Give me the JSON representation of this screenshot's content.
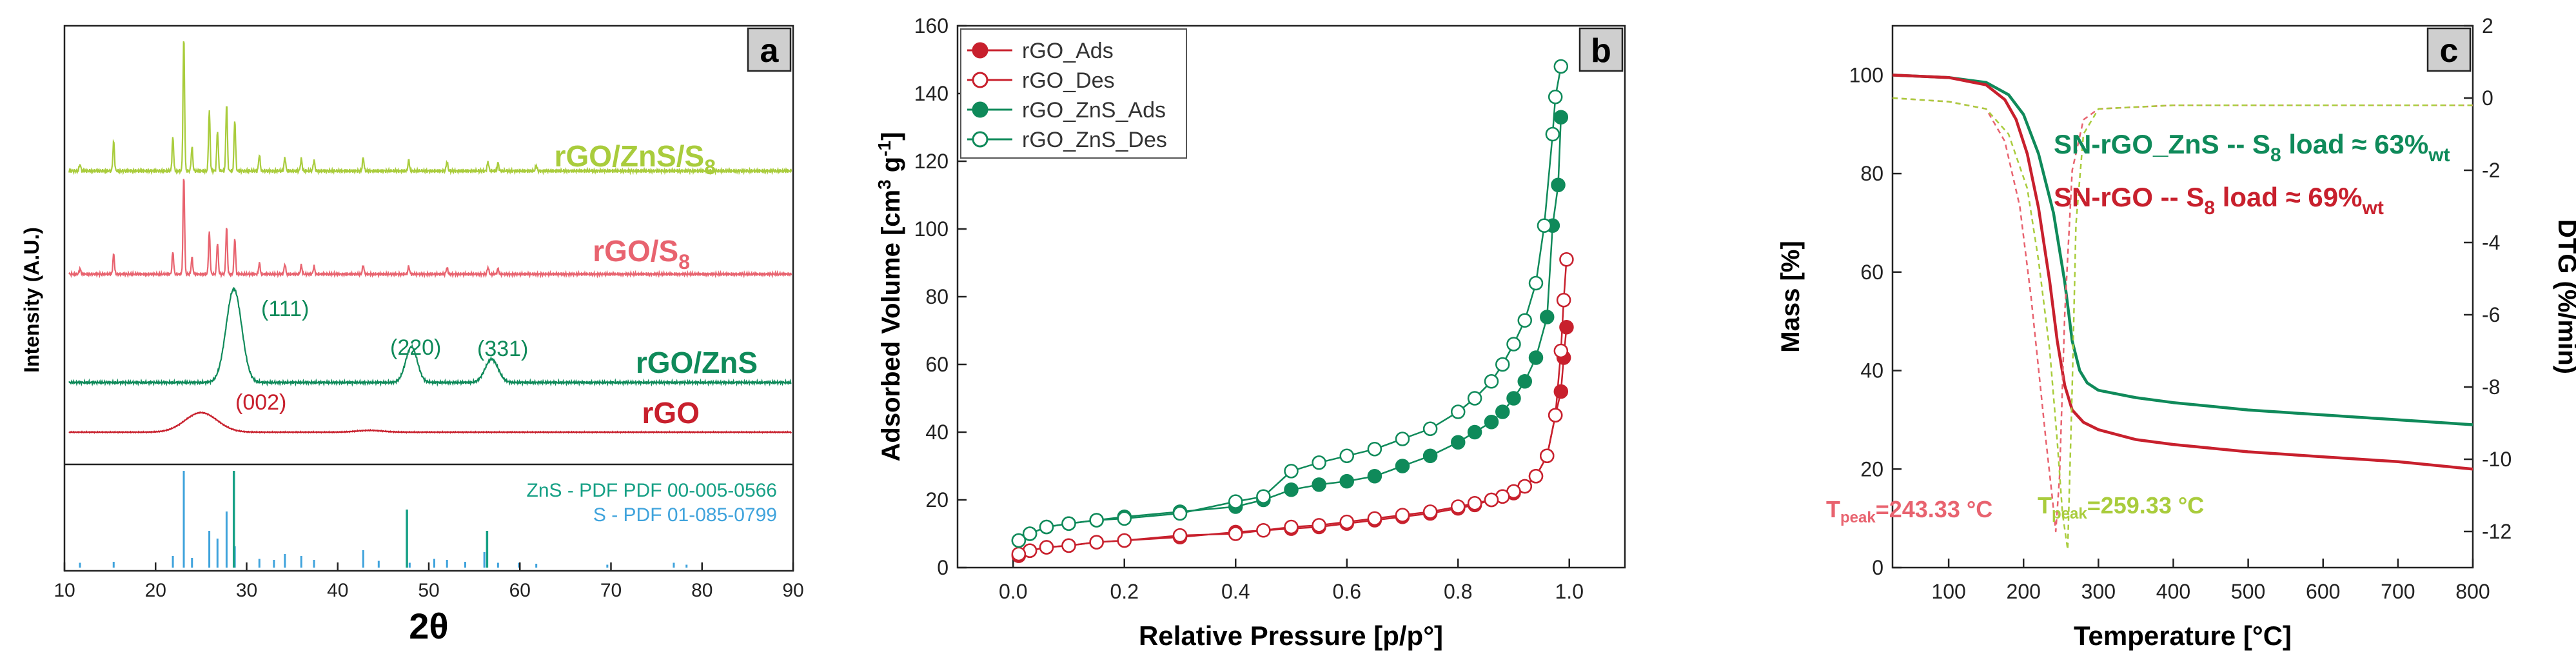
{
  "colors": {
    "rgo": "#c8202d",
    "rgo_s8": "#e8636f",
    "rgo_zns": "#0f8a5a",
    "rgo_zns_s8": "#a9cc3c",
    "ref_zns": "#16a085",
    "ref_s": "#3fa3dc",
    "panel_label_bg": "#cfcfcf"
  },
  "chart_data": [
    {
      "panel": "a",
      "type": "line",
      "title": "",
      "xlabel": "2θ",
      "ylabel": "Intensity (A.U.)",
      "xlim": [
        10,
        90
      ],
      "xticks": [
        "10",
        "20",
        "30",
        "40",
        "50",
        "60",
        "70",
        "80",
        "90"
      ],
      "series": [
        {
          "name": "rGO/ZnS/S8",
          "label_main": "rGO/ZnS/S",
          "label_sub": "8",
          "color_key": "rgo_zns_s8",
          "peaks": [
            [
              11.7,
              0.05
            ],
            [
              15.4,
              0.22
            ],
            [
              21.9,
              0.25
            ],
            [
              23.1,
              1.0
            ],
            [
              24.0,
              0.18
            ],
            [
              25.9,
              0.45
            ],
            [
              26.8,
              0.3
            ],
            [
              27.8,
              0.5
            ],
            [
              28.7,
              0.38
            ],
            [
              31.4,
              0.12
            ],
            [
              34.2,
              0.1
            ],
            [
              36.0,
              0.09
            ],
            [
              37.4,
              0.08
            ],
            [
              42.8,
              0.1
            ],
            [
              47.8,
              0.08
            ],
            [
              52.0,
              0.07
            ],
            [
              56.5,
              0.07
            ],
            [
              57.6,
              0.06
            ],
            [
              61.8,
              0.04
            ]
          ],
          "broad": []
        },
        {
          "name": "rGO/S8",
          "label_main": "rGO/S",
          "label_sub": "8",
          "color_key": "rgo_s8",
          "peaks": [
            [
              11.7,
              0.05
            ],
            [
              15.4,
              0.18
            ],
            [
              21.9,
              0.2
            ],
            [
              23.1,
              0.88
            ],
            [
              24.0,
              0.15
            ],
            [
              25.9,
              0.38
            ],
            [
              26.8,
              0.28
            ],
            [
              27.8,
              0.42
            ],
            [
              28.7,
              0.32
            ],
            [
              31.4,
              0.1
            ],
            [
              34.2,
              0.09
            ],
            [
              36.0,
              0.08
            ],
            [
              37.4,
              0.07
            ],
            [
              42.8,
              0.08
            ],
            [
              47.8,
              0.07
            ],
            [
              52.0,
              0.06
            ],
            [
              56.5,
              0.06
            ],
            [
              57.6,
              0.05
            ]
          ],
          "broad": []
        },
        {
          "name": "rGO/ZnS",
          "label_main": "rGO/ZnS",
          "label_sub": "",
          "color_key": "rgo_zns",
          "peaks": [],
          "broad": [
            [
              28.6,
              1.0,
              1.2
            ],
            [
              48.1,
              0.38,
              0.9
            ],
            [
              56.9,
              0.25,
              1.0
            ]
          ],
          "annotations": [
            {
              "x": 32.5,
              "text": "(111)"
            },
            {
              "x": 47.8,
              "text": "(220)"
            },
            {
              "x": 56.5,
              "text": "(331)"
            }
          ]
        },
        {
          "name": "rGO",
          "label_main": "rGO",
          "label_sub": "",
          "color_key": "rgo",
          "peaks": [],
          "broad": [
            [
              25.0,
              0.55,
              2.5
            ],
            [
              43.5,
              0.05,
              2.0
            ]
          ],
          "annotations": [
            {
              "x": 31.5,
              "text": "(002)"
            }
          ]
        }
      ],
      "reference": {
        "legend": [
          "ZnS - PDF PDF 00-005-0566",
          "S - PDF 01-085-0799"
        ],
        "zns": [
          [
            28.6,
            1.0
          ],
          [
            47.6,
            0.6
          ],
          [
            56.4,
            0.38
          ]
        ],
        "s": [
          [
            11.7,
            0.05
          ],
          [
            15.4,
            0.06
          ],
          [
            21.9,
            0.12
          ],
          [
            23.1,
            1.0
          ],
          [
            24.0,
            0.1
          ],
          [
            25.9,
            0.38
          ],
          [
            26.8,
            0.3
          ],
          [
            27.8,
            0.58
          ],
          [
            28.7,
            0.22
          ],
          [
            31.4,
            0.09
          ],
          [
            33.0,
            0.08
          ],
          [
            34.2,
            0.14
          ],
          [
            36.0,
            0.12
          ],
          [
            37.4,
            0.08
          ],
          [
            42.8,
            0.18
          ],
          [
            44.5,
            0.07
          ],
          [
            47.9,
            0.05
          ],
          [
            50.6,
            0.09
          ],
          [
            52.0,
            0.08
          ],
          [
            54.0,
            0.06
          ],
          [
            56.1,
            0.16
          ],
          [
            57.6,
            0.05
          ],
          [
            59.9,
            0.05
          ],
          [
            61.8,
            0.04
          ],
          [
            69.6,
            0.03
          ],
          [
            76.9,
            0.05
          ],
          [
            78.3,
            0.03
          ]
        ]
      }
    },
    {
      "panel": "b",
      "type": "line",
      "title": "",
      "xlabel": "Relative Pressure [p/p°]",
      "ylabel_main": "Adsorbed Volume [cm",
      "ylabel_sup1": "3",
      "ylabel_mid": " g",
      "ylabel_sup2": "-1",
      "ylabel_end": "]",
      "xlim": [
        -0.1,
        1.1
      ],
      "ylim": [
        0,
        160
      ],
      "xticks": [
        "0.0",
        "0.2",
        "0.4",
        "0.6",
        "0.8",
        "1.0"
      ],
      "yticks": [
        "0",
        "20",
        "40",
        "60",
        "80",
        "100",
        "120",
        "140",
        "160"
      ],
      "legend": [
        "rGO_Ads",
        "rGO_Des",
        "rGO_ZnS_Ads",
        "rGO_ZnS_Des"
      ],
      "series": [
        {
          "name": "rGO_Ads",
          "color_key": "rgo",
          "filled": true,
          "x": [
            0.01,
            0.03,
            0.06,
            0.1,
            0.15,
            0.2,
            0.3,
            0.4,
            0.5,
            0.55,
            0.6,
            0.65,
            0.7,
            0.75,
            0.8,
            0.83,
            0.86,
            0.88,
            0.9,
            0.92,
            0.94,
            0.96,
            0.975,
            0.985,
            0.99,
            0.995
          ],
          "y": [
            3.5,
            5,
            6,
            6.5,
            7.5,
            8,
            9,
            10.5,
            11.5,
            12,
            13,
            14,
            15,
            16,
            17.5,
            18.5,
            20,
            21,
            22,
            24,
            27,
            33,
            45,
            52,
            62,
            71
          ]
        },
        {
          "name": "rGO_Des",
          "color_key": "rgo",
          "filled": false,
          "x": [
            0.995,
            0.99,
            0.985,
            0.975,
            0.96,
            0.94,
            0.92,
            0.9,
            0.88,
            0.86,
            0.83,
            0.8,
            0.75,
            0.7,
            0.65,
            0.6,
            0.55,
            0.5,
            0.45,
            0.4,
            0.3,
            0.2,
            0.15,
            0.1,
            0.06,
            0.03,
            0.01
          ],
          "y": [
            91,
            79,
            64,
            45,
            33,
            27,
            24,
            22.5,
            21,
            20,
            19,
            18,
            16.5,
            15.5,
            14.5,
            13.5,
            12.5,
            12,
            11,
            10,
            9.5,
            8,
            7.5,
            6.5,
            6,
            5,
            4
          ]
        },
        {
          "name": "rGO_ZnS_Ads",
          "color_key": "rgo_zns",
          "filled": true,
          "x": [
            0.01,
            0.03,
            0.06,
            0.1,
            0.15,
            0.2,
            0.3,
            0.4,
            0.45,
            0.5,
            0.55,
            0.6,
            0.65,
            0.7,
            0.75,
            0.8,
            0.83,
            0.86,
            0.88,
            0.9,
            0.92,
            0.94,
            0.96,
            0.97,
            0.98,
            0.985
          ],
          "y": [
            8,
            10,
            12,
            13,
            14,
            15,
            16.5,
            18,
            20,
            23,
            24.5,
            25.5,
            27,
            30,
            33,
            37,
            40,
            43,
            46,
            50,
            55,
            62,
            74,
            101,
            113,
            133
          ]
        },
        {
          "name": "rGO_ZnS_Des",
          "color_key": "rgo_zns",
          "filled": false,
          "x": [
            0.985,
            0.975,
            0.97,
            0.955,
            0.94,
            0.92,
            0.9,
            0.88,
            0.86,
            0.83,
            0.8,
            0.75,
            0.7,
            0.65,
            0.6,
            0.55,
            0.5,
            0.45,
            0.4,
            0.3,
            0.2,
            0.15,
            0.1,
            0.06,
            0.03,
            0.01
          ],
          "y": [
            148,
            139,
            128,
            101,
            84,
            73,
            66,
            60,
            55,
            50,
            46,
            41,
            38,
            35,
            33,
            31,
            28.5,
            21,
            19.5,
            16,
            14.5,
            14,
            13,
            12,
            10,
            8
          ]
        }
      ]
    },
    {
      "panel": "c",
      "type": "line",
      "title": "",
      "xlabel": "Temperature [°C]",
      "ylabel": "Mass [%]",
      "y2label": "DTG (%/min)",
      "xlim": [
        25,
        800
      ],
      "ylim": [
        0,
        110
      ],
      "y2lim": [
        -13,
        2
      ],
      "xticks": [
        "100",
        "200",
        "300",
        "400",
        "500",
        "600",
        "700",
        "800"
      ],
      "yticks": [
        "0",
        "20",
        "40",
        "60",
        "80",
        "100"
      ],
      "y2ticks": [
        "-12",
        "-10",
        "-8",
        "-6",
        "-4",
        "-2",
        "0",
        "2"
      ],
      "annotations": {
        "zns_text_main": "SN-rGO_ZnS -- S",
        "zns_text_sub1": "8",
        "zns_text_mid": " load ≈ 63%",
        "zns_text_sub2": "wt",
        "rgo_text_main": "SN-rGO -- S",
        "rgo_text_sub1": "8",
        "rgo_text_mid": " load ≈ 69%",
        "rgo_text_sub2": "wt",
        "tpeak_rgo_main": "T",
        "tpeak_rgo_sub": "peak",
        "tpeak_rgo_val": "=243.33 °C",
        "tpeak_zns_main": "T",
        "tpeak_zns_sub": "peak",
        "tpeak_zns_val": "=259.33 °C"
      },
      "series": [
        {
          "name": "SN-rGO_ZnS mass",
          "color_key": "rgo_zns",
          "axis": "left",
          "x": [
            25,
            100,
            150,
            180,
            200,
            220,
            240,
            255,
            265,
            275,
            285,
            300,
            350,
            400,
            500,
            600,
            700,
            800
          ],
          "y": [
            100,
            99.5,
            98.5,
            96,
            92,
            84,
            72,
            58,
            46,
            40,
            37.5,
            36,
            34.5,
            33.5,
            32,
            31,
            30,
            29
          ]
        },
        {
          "name": "SN-rGO mass",
          "color_key": "rgo",
          "axis": "left",
          "x": [
            25,
            100,
            150,
            175,
            190,
            205,
            220,
            235,
            245,
            255,
            265,
            280,
            300,
            350,
            400,
            500,
            600,
            700,
            800
          ],
          "y": [
            100,
            99.5,
            98,
            95,
            91,
            84,
            73,
            58,
            46,
            37,
            32,
            29.5,
            28,
            26,
            25,
            23.5,
            22.5,
            21.5,
            20
          ]
        },
        {
          "name": "SN-rGO DTG",
          "color_key": "rgo_s8",
          "axis": "right",
          "dashed": true,
          "x": [
            25,
            100,
            150,
            175,
            195,
            210,
            220,
            230,
            238,
            243,
            248,
            255,
            265,
            280,
            300,
            400,
            600,
            800
          ],
          "y": [
            0,
            -0.1,
            -0.3,
            -1.2,
            -3,
            -5.5,
            -7.5,
            -9.5,
            -11,
            -12,
            -10.5,
            -6,
            -2,
            -0.6,
            -0.3,
            -0.2,
            -0.2,
            -0.2
          ]
        },
        {
          "name": "SN-rGO_ZnS DTG",
          "color_key": "rgo_zns_s8",
          "axis": "right",
          "dashed": true,
          "x": [
            25,
            100,
            150,
            180,
            205,
            220,
            235,
            245,
            252,
            259,
            265,
            270,
            280,
            300,
            400,
            600,
            800
          ],
          "y": [
            0,
            -0.1,
            -0.3,
            -1,
            -2.5,
            -4.5,
            -7,
            -9.5,
            -11.5,
            -12.5,
            -8,
            -3.5,
            -1,
            -0.3,
            -0.2,
            -0.2,
            -0.2
          ]
        }
      ]
    }
  ]
}
